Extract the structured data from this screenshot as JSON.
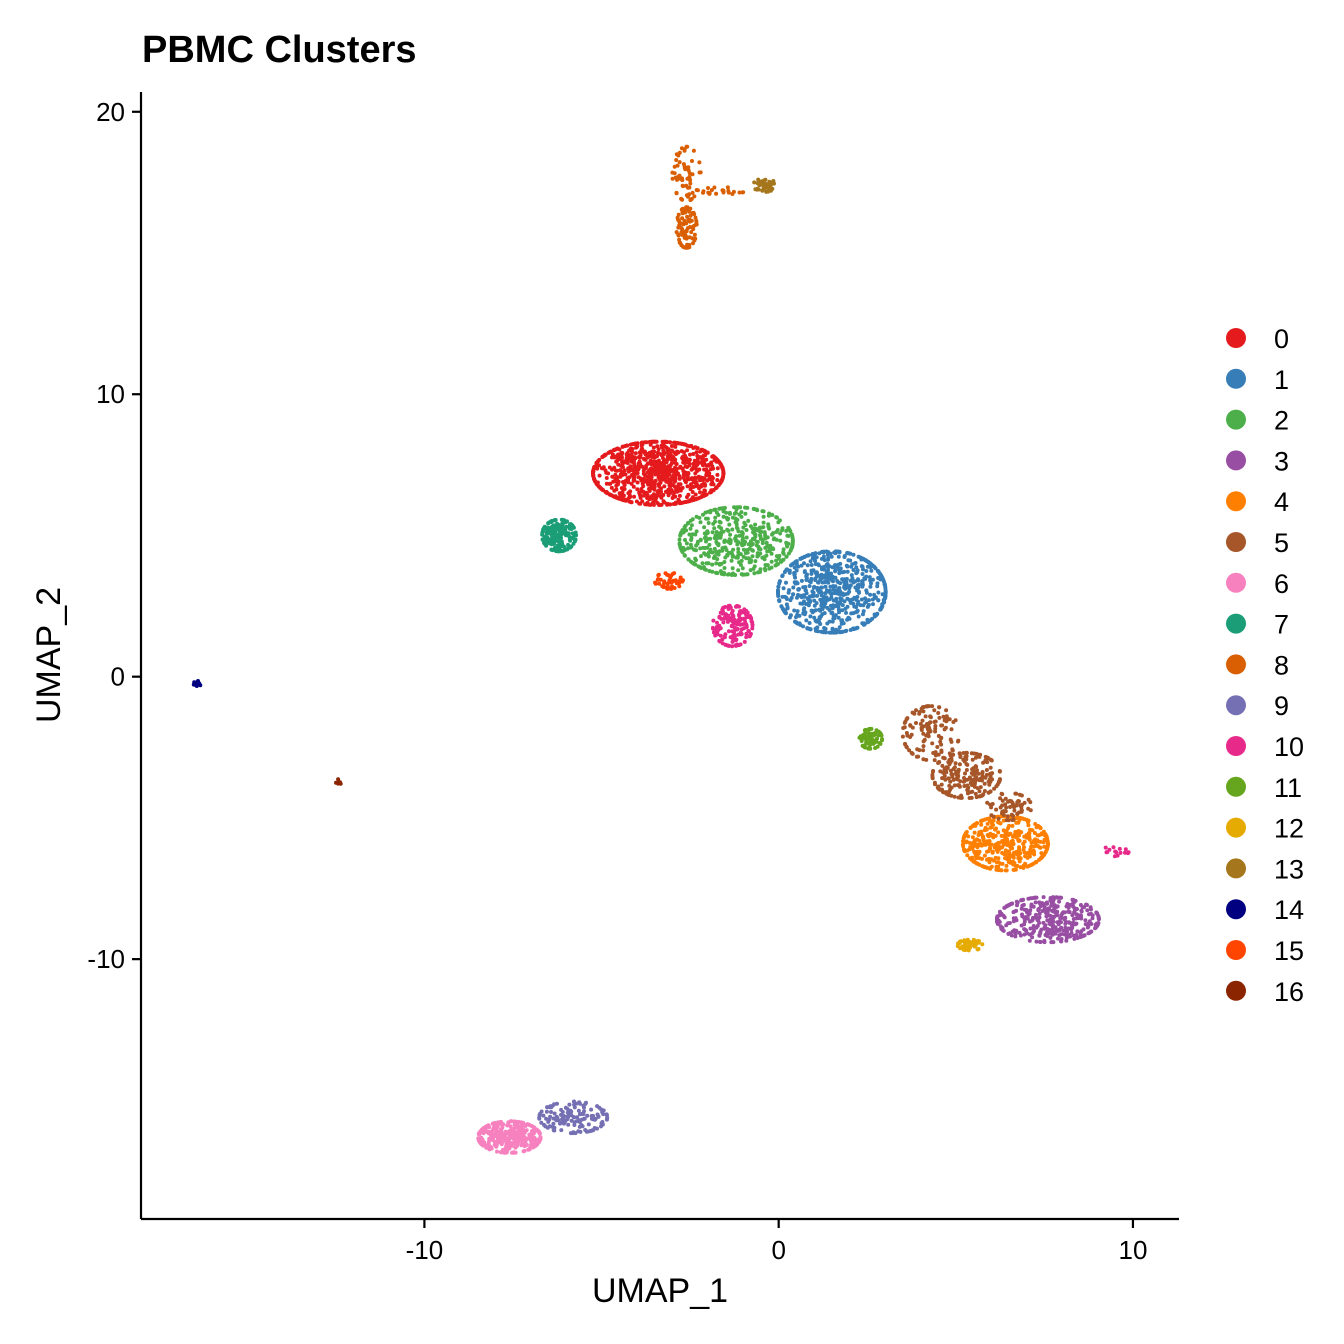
{
  "chart_data": {
    "type": "scatter",
    "title": "PBMC Clusters",
    "xlabel": "UMAP_1",
    "ylabel": "UMAP_2",
    "xlim": [
      -18,
      11.3
    ],
    "ylim": [
      -19.2,
      20.7
    ],
    "xticks": [
      -10,
      0,
      10
    ],
    "yticks": [
      -10,
      0,
      10,
      20
    ],
    "grid": false,
    "legend_position": "right",
    "legend": [
      {
        "label": "0",
        "color": "#E41A1C"
      },
      {
        "label": "1",
        "color": "#377EB8"
      },
      {
        "label": "2",
        "color": "#4DAF4A"
      },
      {
        "label": "3",
        "color": "#984EA3"
      },
      {
        "label": "4",
        "color": "#FF7F00"
      },
      {
        "label": "5",
        "color": "#A65628"
      },
      {
        "label": "6",
        "color": "#F781BF"
      },
      {
        "label": "7",
        "color": "#1B9E77"
      },
      {
        "label": "8",
        "color": "#D95F02"
      },
      {
        "label": "9",
        "color": "#7570B3"
      },
      {
        "label": "10",
        "color": "#E7298A"
      },
      {
        "label": "11",
        "color": "#66A61E"
      },
      {
        "label": "12",
        "color": "#E6AB02"
      },
      {
        "label": "13",
        "color": "#A6761D"
      },
      {
        "label": "14",
        "color": "#000080"
      },
      {
        "label": "15",
        "color": "#FF4500"
      },
      {
        "label": "16",
        "color": "#8B2500"
      }
    ],
    "series": [
      {
        "name": "0",
        "clusters": [
          {
            "x": -3.4,
            "y": 7.2,
            "sx": 1.15,
            "sy": 0.7,
            "n": 900
          }
        ]
      },
      {
        "name": "1",
        "clusters": [
          {
            "x": 1.5,
            "y": 3.0,
            "sx": 0.95,
            "sy": 0.9,
            "n": 650
          }
        ]
      },
      {
        "name": "2",
        "clusters": [
          {
            "x": -1.2,
            "y": 4.8,
            "sx": 1.0,
            "sy": 0.75,
            "n": 450
          }
        ]
      },
      {
        "name": "3",
        "clusters": [
          {
            "x": 7.6,
            "y": -8.6,
            "sx": 0.9,
            "sy": 0.5,
            "n": 380
          }
        ]
      },
      {
        "name": "4",
        "clusters": [
          {
            "x": 6.4,
            "y": -5.9,
            "sx": 0.75,
            "sy": 0.6,
            "n": 400
          }
        ]
      },
      {
        "name": "5",
        "clusters": [
          {
            "x": 4.3,
            "y": -2.0,
            "sx": 0.5,
            "sy": 0.6,
            "n": 120
          },
          {
            "x": 5.3,
            "y": -3.5,
            "sx": 0.6,
            "sy": 0.5,
            "n": 220
          },
          {
            "x": 6.5,
            "y": -4.6,
            "sx": 0.4,
            "sy": 0.3,
            "n": 60
          }
        ]
      },
      {
        "name": "6",
        "clusters": [
          {
            "x": -7.6,
            "y": -16.3,
            "sx": 0.55,
            "sy": 0.35,
            "n": 330
          }
        ]
      },
      {
        "name": "7",
        "clusters": [
          {
            "x": -6.2,
            "y": 5.0,
            "sx": 0.3,
            "sy": 0.35,
            "n": 180
          }
        ]
      },
      {
        "name": "8",
        "clusters": [
          {
            "x": -2.6,
            "y": 15.9,
            "sx": 0.18,
            "sy": 0.45,
            "n": 80
          },
          {
            "x": -2.6,
            "y": 17.8,
            "sx": 0.25,
            "sy": 0.6,
            "n": 60
          },
          {
            "x": -1.6,
            "y": 17.2,
            "sx": 0.4,
            "sy": 0.08,
            "n": 20
          }
        ]
      },
      {
        "name": "9",
        "clusters": [
          {
            "x": -5.8,
            "y": -15.6,
            "sx": 0.6,
            "sy": 0.35,
            "n": 140
          }
        ]
      },
      {
        "name": "10",
        "clusters": [
          {
            "x": -1.3,
            "y": 1.8,
            "sx": 0.35,
            "sy": 0.45,
            "n": 160
          },
          {
            "x": 9.4,
            "y": -6.2,
            "sx": 0.3,
            "sy": 0.1,
            "n": 15
          }
        ]
      },
      {
        "name": "11",
        "clusters": [
          {
            "x": 2.6,
            "y": -2.2,
            "sx": 0.2,
            "sy": 0.22,
            "n": 80
          }
        ]
      },
      {
        "name": "12",
        "clusters": [
          {
            "x": 5.4,
            "y": -9.5,
            "sx": 0.22,
            "sy": 0.12,
            "n": 50
          }
        ]
      },
      {
        "name": "13",
        "clusters": [
          {
            "x": -0.4,
            "y": 17.4,
            "sx": 0.2,
            "sy": 0.15,
            "n": 45
          }
        ]
      },
      {
        "name": "14",
        "clusters": [
          {
            "x": -16.4,
            "y": -0.25,
            "sx": 0.07,
            "sy": 0.07,
            "n": 15
          }
        ]
      },
      {
        "name": "15",
        "clusters": [
          {
            "x": -3.1,
            "y": 3.4,
            "sx": 0.25,
            "sy": 0.18,
            "n": 45
          }
        ]
      },
      {
        "name": "16",
        "clusters": [
          {
            "x": -12.4,
            "y": -3.75,
            "sx": 0.06,
            "sy": 0.08,
            "n": 6
          }
        ]
      }
    ]
  }
}
